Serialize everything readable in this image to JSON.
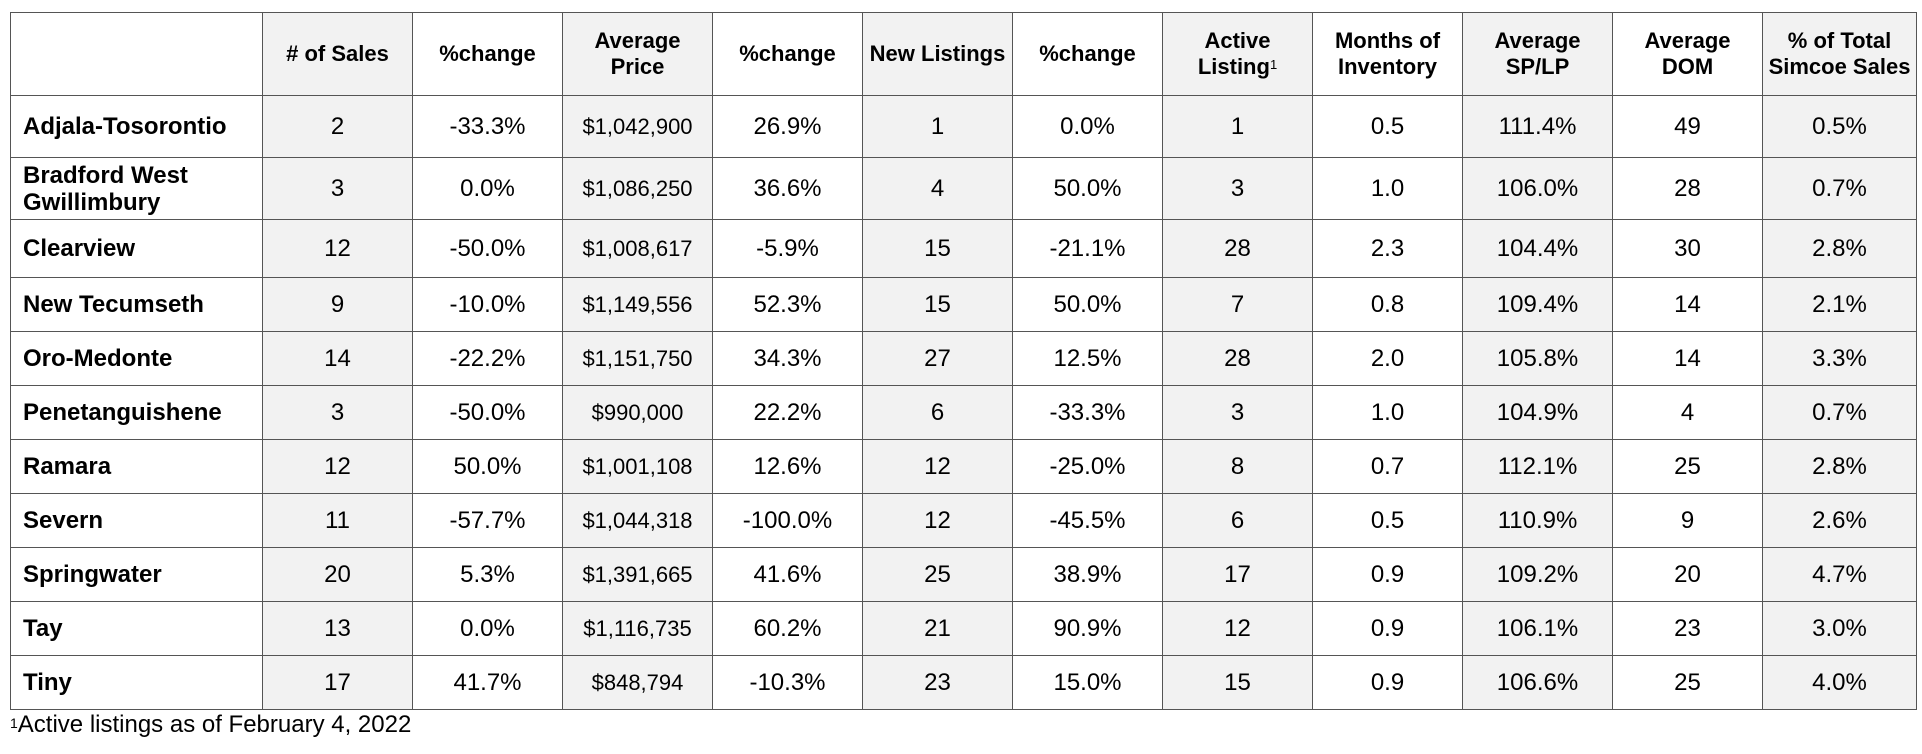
{
  "table": {
    "headers": [
      "",
      "# of Sales",
      "%change",
      "Average Price",
      "%change",
      "New Listings",
      "%change",
      "Active Listing",
      "Months of Inventory",
      "Average SP/LP",
      "Average DOM",
      "% of Total Simcoe Sales"
    ],
    "active_listing_footnote_marker": "1",
    "rows": [
      [
        "Adjala-Tosorontio",
        "2",
        "-33.3%",
        "$1,042,900",
        "26.9%",
        "1",
        "0.0%",
        "1",
        "0.5",
        "111.4%",
        "49",
        "0.5%"
      ],
      [
        "Bradford West Gwillimbury",
        "3",
        "0.0%",
        "$1,086,250",
        "36.6%",
        "4",
        "50.0%",
        "3",
        "1.0",
        "106.0%",
        "28",
        "0.7%"
      ],
      [
        "Clearview",
        "12",
        "-50.0%",
        "$1,008,617",
        "-5.9%",
        "15",
        "-21.1%",
        "28",
        "2.3",
        "104.4%",
        "30",
        "2.8%"
      ],
      [
        "New Tecumseth",
        "9",
        "-10.0%",
        "$1,149,556",
        "52.3%",
        "15",
        "50.0%",
        "7",
        "0.8",
        "109.4%",
        "14",
        "2.1%"
      ],
      [
        "Oro-Medonte",
        "14",
        "-22.2%",
        "$1,151,750",
        "34.3%",
        "27",
        "12.5%",
        "28",
        "2.0",
        "105.8%",
        "14",
        "3.3%"
      ],
      [
        "Penetanguishene",
        "3",
        "-50.0%",
        "$990,000",
        "22.2%",
        "6",
        "-33.3%",
        "3",
        "1.0",
        "104.9%",
        "4",
        "0.7%"
      ],
      [
        "Ramara",
        "12",
        "50.0%",
        "$1,001,108",
        "12.6%",
        "12",
        "-25.0%",
        "8",
        "0.7",
        "112.1%",
        "25",
        "2.8%"
      ],
      [
        "Severn",
        "11",
        "-57.7%",
        "$1,044,318",
        "-100.0%",
        "12",
        "-45.5%",
        "6",
        "0.5",
        "110.9%",
        "9",
        "2.6%"
      ],
      [
        "Springwater",
        "20",
        "5.3%",
        "$1,391,665",
        "41.6%",
        "25",
        "38.9%",
        "17",
        "0.9",
        "109.2%",
        "20",
        "4.7%"
      ],
      [
        "Tay",
        "13",
        "0.0%",
        "$1,116,735",
        "60.2%",
        "21",
        "90.9%",
        "12",
        "0.9",
        "106.1%",
        "23",
        "3.0%"
      ],
      [
        "Tiny",
        "17",
        "41.7%",
        "$848,794",
        "-10.3%",
        "23",
        "15.0%",
        "15",
        "0.9",
        "106.6%",
        "25",
        "4.0%"
      ]
    ]
  },
  "footnote": {
    "marker": "1",
    "text": "Active listings as of February 4, 2022"
  },
  "colors": {
    "shaded_column": "#f2f2f2",
    "border": "#555555"
  }
}
